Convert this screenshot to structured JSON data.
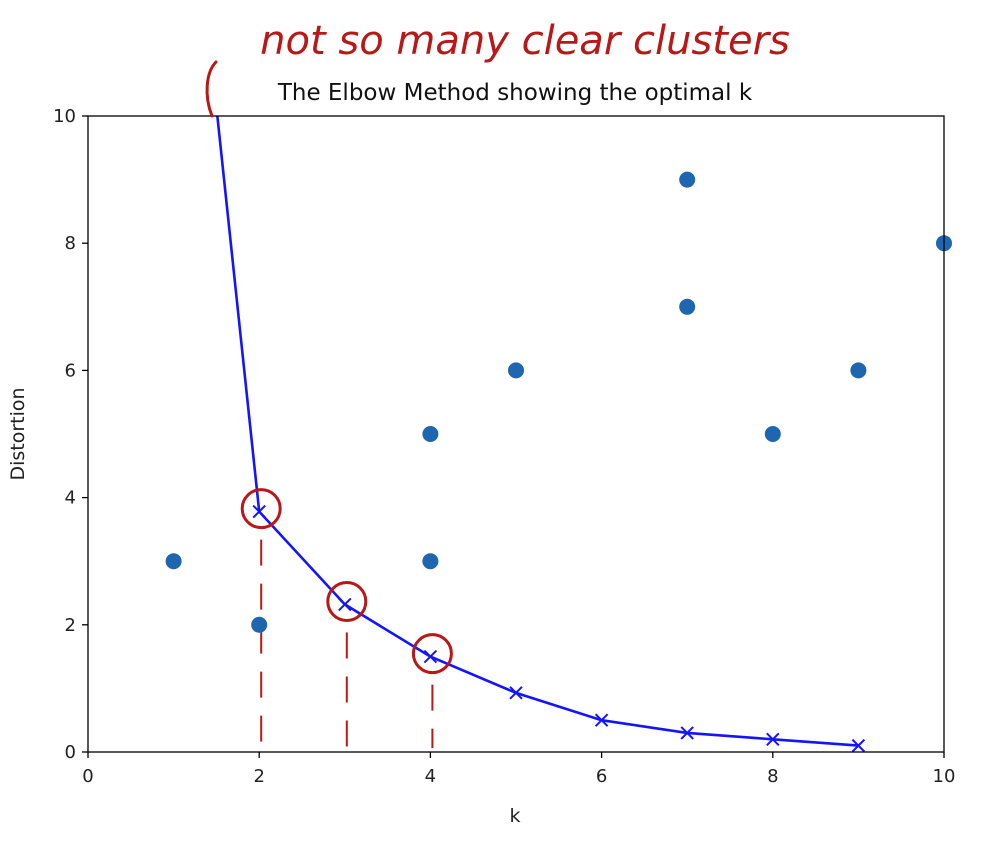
{
  "chart_data": {
    "type": "scatter",
    "title": "The Elbow Method showing the optimal k",
    "xlabel": "k",
    "ylabel": "Distortion",
    "xlim": [
      0,
      10
    ],
    "ylim": [
      0,
      10
    ],
    "xticks": [
      "0",
      "2",
      "4",
      "6",
      "8",
      "10"
    ],
    "yticks": [
      "0",
      "2",
      "4",
      "6",
      "8",
      "10"
    ],
    "grid": false,
    "series": [
      {
        "type": "scatter",
        "color": "#1f66b0",
        "points": [
          {
            "x": 1,
            "y": 3
          },
          {
            "x": 2,
            "y": 2
          },
          {
            "x": 4,
            "y": 3
          },
          {
            "x": 4,
            "y": 5
          },
          {
            "x": 5,
            "y": 6
          },
          {
            "x": 7,
            "y": 7
          },
          {
            "x": 7,
            "y": 9
          },
          {
            "x": 8,
            "y": 5
          },
          {
            "x": 9,
            "y": 6
          },
          {
            "x": 10,
            "y": 8
          }
        ]
      },
      {
        "type": "line",
        "marker": "x",
        "color": "#1414ff",
        "points": [
          {
            "x": 1,
            "y": 16.5
          },
          {
            "x": 2,
            "y": 3.78
          },
          {
            "x": 3,
            "y": 2.32
          },
          {
            "x": 4,
            "y": 1.5
          },
          {
            "x": 5,
            "y": 0.93
          },
          {
            "x": 6,
            "y": 0.5
          },
          {
            "x": 7,
            "y": 0.3
          },
          {
            "x": 8,
            "y": 0.2
          },
          {
            "x": 9,
            "y": 0.1
          }
        ]
      }
    ],
    "annotations": {
      "text": "not so many clear clusters",
      "color": "#b81818",
      "circled_k": [
        2,
        3,
        4
      ]
    }
  }
}
